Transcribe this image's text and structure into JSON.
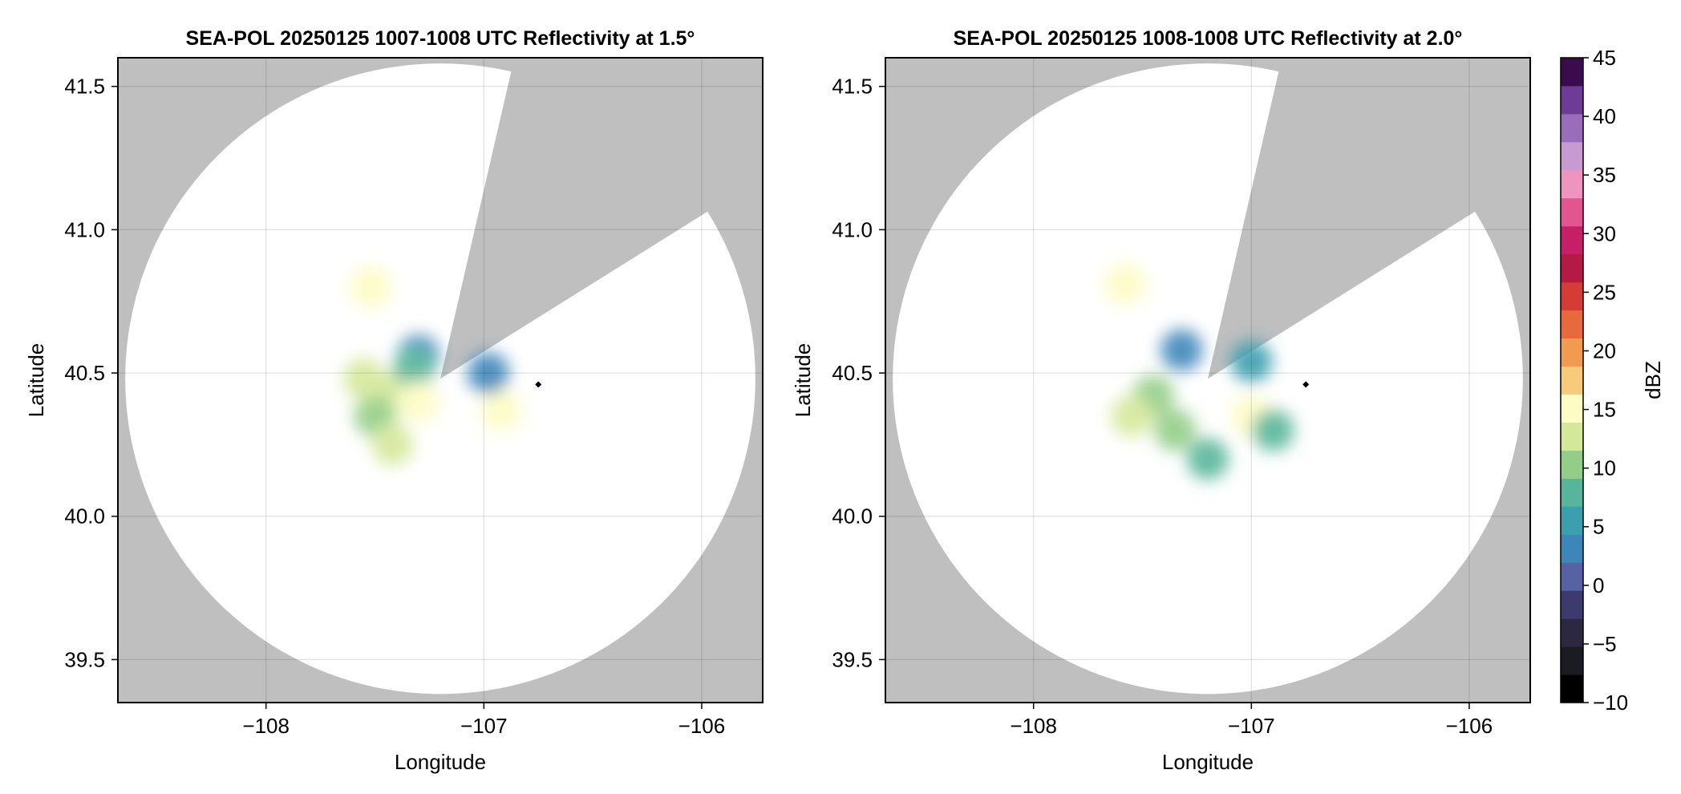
{
  "chart_data": [
    {
      "type": "heatmap",
      "title": "SEA-POL 20250125 1007-1008 UTC Reflectivity at 1.5°",
      "xlabel": "Longitude",
      "ylabel": "Latitude",
      "xlim": [
        -108.68,
        -105.72
      ],
      "ylim": [
        39.35,
        41.6
      ],
      "xticks": [
        -108,
        -107,
        -106
      ],
      "xtick_labels": [
        "−108",
        "−107",
        "−106"
      ],
      "yticks": [
        39.5,
        40.0,
        40.5,
        41.0,
        41.5
      ],
      "ytick_labels": [
        "39.5",
        "40.0",
        "40.5",
        "41.0",
        "41.5"
      ],
      "grid": true,
      "background_color": "#bfbfbf",
      "coverage_color": "#ffffff",
      "radar_site": {
        "lon": -107.2,
        "lat": 40.48
      },
      "coverage_radius_deg_lat": 1.1,
      "blocked_sectors_deg_azimuth": [
        [
          13,
          50
        ],
        [
          50,
          58
        ]
      ],
      "marker": {
        "lon": -106.75,
        "lat": 40.46
      },
      "echo_regions": [
        {
          "lon": -107.42,
          "lat": 40.43,
          "dbz": 12
        },
        {
          "lon": -107.3,
          "lat": 40.56,
          "dbz": 2
        },
        {
          "lon": -107.32,
          "lat": 40.52,
          "dbz": 8
        },
        {
          "lon": -107.5,
          "lat": 40.35,
          "dbz": 11
        },
        {
          "lon": -107.55,
          "lat": 40.48,
          "dbz": 13
        },
        {
          "lon": -107.3,
          "lat": 40.4,
          "dbz": 16
        },
        {
          "lon": -107.42,
          "lat": 40.25,
          "dbz": 12
        },
        {
          "lon": -106.92,
          "lat": 40.37,
          "dbz": 15
        },
        {
          "lon": -106.98,
          "lat": 40.5,
          "dbz": 4
        },
        {
          "lon": -107.52,
          "lat": 40.8,
          "dbz": 16
        }
      ]
    },
    {
      "type": "heatmap",
      "title": "SEA-POL 20250125 1008-1008 UTC Reflectivity at 2.0°",
      "xlabel": "Longitude",
      "ylabel": "Latitude",
      "xlim": [
        -108.68,
        -105.72
      ],
      "ylim": [
        39.35,
        41.6
      ],
      "xticks": [
        -108,
        -107,
        -106
      ],
      "xtick_labels": [
        "−108",
        "−107",
        "−106"
      ],
      "yticks": [
        39.5,
        40.0,
        40.5,
        41.0,
        41.5
      ],
      "ytick_labels": [
        "39.5",
        "40.0",
        "40.5",
        "41.0",
        "41.5"
      ],
      "grid": true,
      "background_color": "#bfbfbf",
      "coverage_color": "#ffffff",
      "radar_site": {
        "lon": -107.2,
        "lat": 40.48
      },
      "coverage_radius_deg_lat": 1.1,
      "blocked_sectors_deg_azimuth": [
        [
          13,
          50
        ],
        [
          50,
          58
        ]
      ],
      "marker": {
        "lon": -106.75,
        "lat": 40.46
      },
      "echo_regions": [
        {
          "lon": -107.45,
          "lat": 40.42,
          "dbz": 11
        },
        {
          "lon": -107.32,
          "lat": 40.58,
          "dbz": 4
        },
        {
          "lon": -107.55,
          "lat": 40.35,
          "dbz": 12
        },
        {
          "lon": -107.35,
          "lat": 40.3,
          "dbz": 10
        },
        {
          "lon": -107.0,
          "lat": 40.35,
          "dbz": 14
        },
        {
          "lon": -106.9,
          "lat": 40.3,
          "dbz": 9
        },
        {
          "lon": -107.0,
          "lat": 40.54,
          "dbz": 6
        },
        {
          "lon": -107.2,
          "lat": 40.2,
          "dbz": 8
        },
        {
          "lon": -107.58,
          "lat": 40.81,
          "dbz": 15
        }
      ]
    }
  ],
  "colorbar": {
    "label": "dBZ",
    "range": [
      -10,
      45
    ],
    "ticks": [
      -10,
      -5,
      0,
      5,
      10,
      15,
      20,
      25,
      30,
      35,
      40,
      45
    ],
    "tick_labels": [
      "−10",
      "−5",
      "0",
      "5",
      "10",
      "15",
      "20",
      "25",
      "30",
      "35",
      "40",
      "45"
    ],
    "colors": [
      "#000000",
      "#1b1b22",
      "#2b2840",
      "#3d3b6e",
      "#5762a5",
      "#3d86b9",
      "#3b9fae",
      "#56b59a",
      "#93cd87",
      "#d4e89a",
      "#fdfcc4",
      "#f6cb7a",
      "#f29b50",
      "#e8693c",
      "#d53c36",
      "#b41a44",
      "#c61f68",
      "#e2558f",
      "#ef94bf",
      "#c79ad2",
      "#9a6cbc",
      "#6e3c97",
      "#3b0b4e"
    ]
  }
}
